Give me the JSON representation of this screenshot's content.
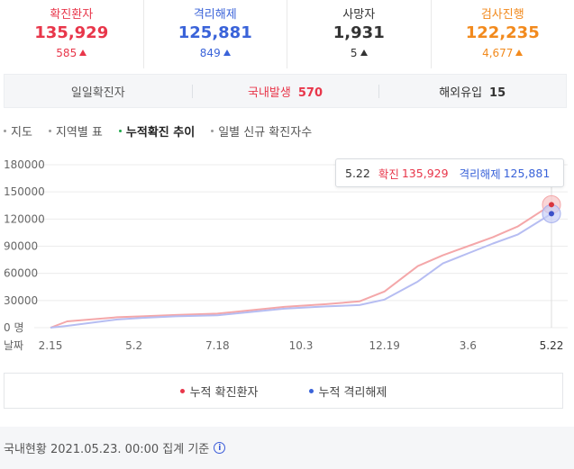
{
  "stats": [
    {
      "label": "확진환자",
      "value": "135,929",
      "delta": "585",
      "color": "#e8364a"
    },
    {
      "label": "격리해제",
      "value": "125,881",
      "delta": "849",
      "color": "#3a63d9"
    },
    {
      "label": "사망자",
      "value": "1,931",
      "delta": "5",
      "color": "#333333"
    },
    {
      "label": "검사진행",
      "value": "122,235",
      "delta": "4,677",
      "color": "#f28a1d"
    }
  ],
  "daily": {
    "total_label": "일일확진자",
    "domestic_label": "국내발생",
    "domestic_value": "570",
    "overseas_label": "해외유입",
    "overseas_value": "15"
  },
  "tabs": [
    {
      "label": "지도",
      "icon": "map-icon"
    },
    {
      "label": "지역별 표",
      "icon": "table-icon"
    },
    {
      "label": "누적확진 추이",
      "icon": "trend-icon",
      "active": true
    },
    {
      "label": "일별 신규 확진자수",
      "icon": "bar-icon"
    }
  ],
  "tooltip": {
    "date": "5.22",
    "confirmed_label": "확진",
    "confirmed_value": "135,929",
    "released_label": "격리해제",
    "released_value": "125,881"
  },
  "legend": {
    "confirmed": "누적 확진환자",
    "released": "누적 격리해제"
  },
  "footer": {
    "text": "국내현황 2021.05.23. 00:00 집계 기준"
  },
  "chart_data": {
    "type": "area",
    "y_ticks": [
      "180000",
      "150000",
      "120000",
      "90000",
      "60000",
      "30000",
      "0 명"
    ],
    "ylim": [
      0,
      180000
    ],
    "x_axis_label": "날짜",
    "x_ticks": [
      "2.15",
      "5.2",
      "7.18",
      "10.3",
      "12.19",
      "3.6",
      "5.22"
    ],
    "series": [
      {
        "name": "누적 확진환자",
        "color": "#f4a7a9",
        "values": [
          30,
          7000,
          11500,
          12500,
          14000,
          15500,
          23000,
          26000,
          29000,
          40000,
          68000,
          80000,
          90000,
          100000,
          112000,
          135929
        ]
      },
      {
        "name": "누적 격리해제",
        "color": "#b6bdf2",
        "values": [
          10,
          2000,
          9000,
          10800,
          12500,
          13700,
          21000,
          23500,
          25000,
          31000,
          51000,
          71000,
          82000,
          93000,
          103000,
          125881
        ]
      }
    ],
    "points_x_tick_positions": [
      0,
      0.2,
      0.8,
      1.1,
      1.5,
      2.0,
      2.8,
      3.3,
      3.7,
      4.0,
      4.4,
      4.7,
      5.0,
      5.3,
      5.6,
      6.0
    ]
  }
}
